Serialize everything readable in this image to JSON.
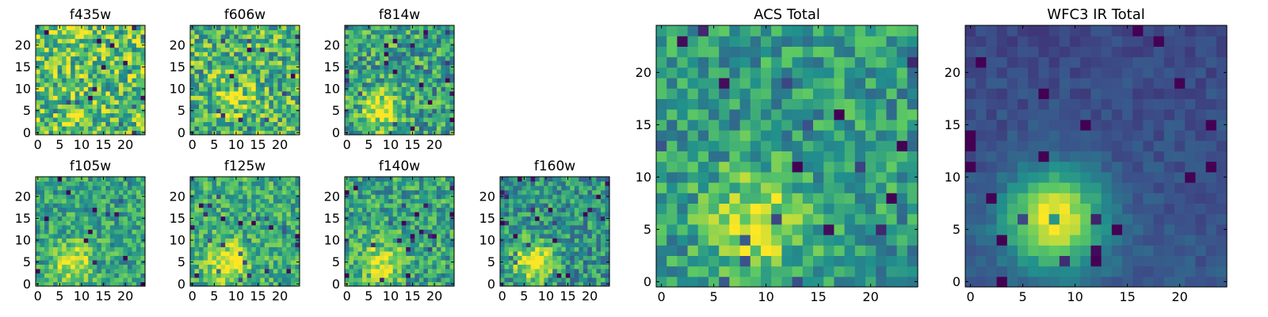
{
  "figure": {
    "background": "#ffffff",
    "colormap": [
      "#440154",
      "#3b528b",
      "#21908d",
      "#5dc963",
      "#fde725"
    ]
  },
  "chart_data": [
    {
      "type": "heatmap",
      "title": "f435w",
      "grid_size": 25,
      "xlim": [
        0,
        24
      ],
      "ylim": [
        0,
        24
      ],
      "xticks": [
        0,
        5,
        10,
        15,
        20
      ],
      "yticks": [
        0,
        5,
        10,
        15,
        20
      ],
      "centroid": [
        8,
        5
      ],
      "peak_brightness": 0.1,
      "noise_level": 0.32,
      "base_level": 0.72,
      "background_gradient": 0.0,
      "seed": 11
    },
    {
      "type": "heatmap",
      "title": "f606w",
      "grid_size": 25,
      "xlim": [
        0,
        24
      ],
      "ylim": [
        0,
        24
      ],
      "xticks": [
        0,
        5,
        10,
        15,
        20
      ],
      "yticks": [
        0,
        5,
        10,
        15,
        20
      ],
      "centroid": [
        10,
        8
      ],
      "peak_brightness": 0.22,
      "noise_level": 0.3,
      "base_level": 0.66,
      "background_gradient": 0.0,
      "seed": 23
    },
    {
      "type": "heatmap",
      "title": "f814w",
      "grid_size": 25,
      "xlim": [
        0,
        24
      ],
      "ylim": [
        0,
        24
      ],
      "xticks": [
        0,
        5,
        10,
        15,
        20
      ],
      "yticks": [
        0,
        5,
        10,
        15,
        20
      ],
      "centroid": [
        8,
        5
      ],
      "peak_brightness": 0.4,
      "noise_level": 0.28,
      "base_level": 0.58,
      "background_gradient": 0.0,
      "seed": 37
    },
    {
      "type": "heatmap",
      "title": "f105w",
      "grid_size": 25,
      "xlim": [
        0,
        24
      ],
      "ylim": [
        0,
        24
      ],
      "xticks": [
        0,
        5,
        10,
        15,
        20
      ],
      "yticks": [
        0,
        5,
        10,
        15,
        20
      ],
      "centroid": [
        8,
        5
      ],
      "peak_brightness": 0.4,
      "noise_level": 0.22,
      "base_level": 0.58,
      "background_gradient": 0.0,
      "seed": 41
    },
    {
      "type": "heatmap",
      "title": "f125w",
      "grid_size": 25,
      "xlim": [
        0,
        24
      ],
      "ylim": [
        0,
        24
      ],
      "xticks": [
        0,
        5,
        10,
        15,
        20
      ],
      "yticks": [
        0,
        5,
        10,
        15,
        20
      ],
      "centroid": [
        8,
        5
      ],
      "peak_brightness": 0.4,
      "noise_level": 0.22,
      "base_level": 0.62,
      "background_gradient": 0.0,
      "seed": 53
    },
    {
      "type": "heatmap",
      "title": "f140w",
      "grid_size": 25,
      "xlim": [
        0,
        24
      ],
      "ylim": [
        0,
        24
      ],
      "xticks": [
        0,
        5,
        10,
        15,
        20
      ],
      "yticks": [
        0,
        5,
        10,
        15,
        20
      ],
      "centroid": [
        8,
        5
      ],
      "peak_brightness": 0.4,
      "noise_level": 0.24,
      "base_level": 0.58,
      "background_gradient": 0.0,
      "seed": 67
    },
    {
      "type": "heatmap",
      "title": "f160w",
      "grid_size": 25,
      "xlim": [
        0,
        24
      ],
      "ylim": [
        0,
        24
      ],
      "xticks": [
        0,
        5,
        10,
        15,
        20
      ],
      "yticks": [
        0,
        5,
        10,
        15,
        20
      ],
      "centroid": [
        7,
        5
      ],
      "peak_brightness": 0.5,
      "noise_level": 0.24,
      "base_level": 0.52,
      "background_gradient": 0.0,
      "seed": 79
    },
    {
      "type": "heatmap",
      "title": "ACS Total",
      "grid_size": 25,
      "xlim": [
        0,
        24
      ],
      "ylim": [
        0,
        24
      ],
      "xticks": [
        0,
        5,
        10,
        15,
        20
      ],
      "yticks": [
        0,
        5,
        10,
        15,
        20
      ],
      "centroid": [
        9,
        6
      ],
      "peak_brightness": 0.38,
      "noise_level": 0.22,
      "base_level": 0.55,
      "background_gradient": 0.0,
      "seed": 97
    },
    {
      "type": "heatmap",
      "title": "WFC3 IR Total",
      "grid_size": 25,
      "xlim": [
        0,
        24
      ],
      "ylim": [
        0,
        24
      ],
      "xticks": [
        0,
        5,
        10,
        15,
        20
      ],
      "yticks": [
        0,
        5,
        10,
        15,
        20
      ],
      "centroid": [
        8,
        6
      ],
      "peak_brightness": 0.75,
      "noise_level": 0.06,
      "base_level": 0.28,
      "background_gradient": -0.06,
      "seed": 103
    }
  ]
}
